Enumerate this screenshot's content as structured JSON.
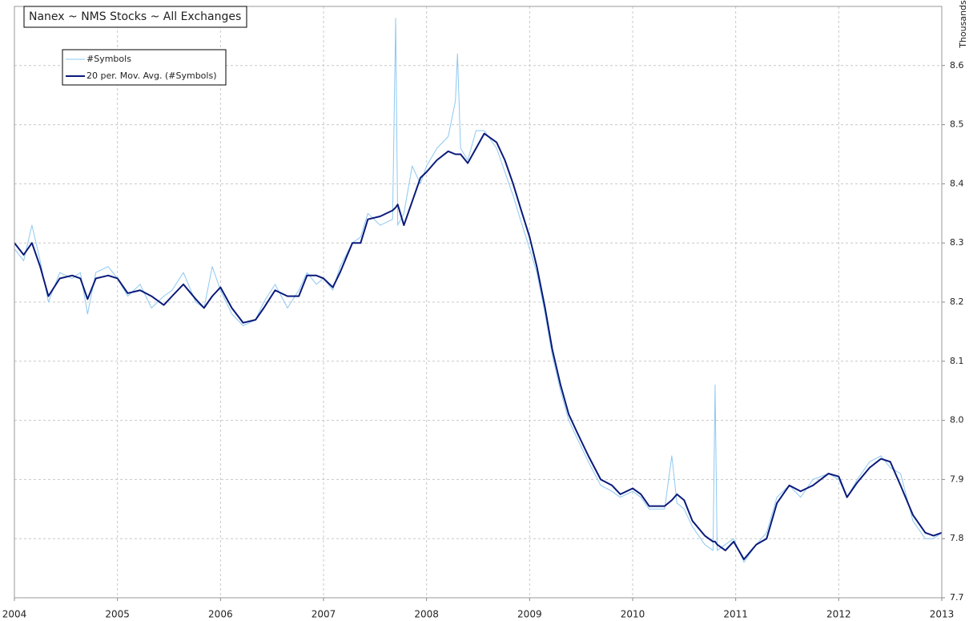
{
  "chart_data": {
    "type": "line",
    "title": "Nanex ~ NMS Stocks ~ All Exchanges",
    "y_axis_label": "Thousands",
    "x": [
      2004.0,
      2004.09,
      2004.17,
      2004.25,
      2004.33,
      2004.44,
      2004.56,
      2004.64,
      2004.71,
      2004.79,
      2004.91,
      2005.0,
      2005.1,
      2005.22,
      2005.33,
      2005.45,
      2005.53,
      2005.64,
      2005.76,
      2005.84,
      2005.92,
      2006.0,
      2006.11,
      2006.22,
      2006.34,
      2006.42,
      2006.53,
      2006.65,
      2006.76,
      2006.84,
      2006.93,
      2007.0,
      2007.09,
      2007.16,
      2007.28,
      2007.36,
      2007.43,
      2007.55,
      2007.67,
      2007.7,
      2007.72,
      2007.78,
      2007.86,
      2007.94,
      2008.0,
      2008.1,
      2008.21,
      2008.28,
      2008.3,
      2008.33,
      2008.4,
      2008.48,
      2008.56,
      2008.68,
      2008.76,
      2008.84,
      2008.91,
      2009.0,
      2009.07,
      2009.15,
      2009.22,
      2009.3,
      2009.38,
      2009.46,
      2009.57,
      2009.69,
      2009.8,
      2009.88,
      2010.0,
      2010.08,
      2010.16,
      2010.31,
      2010.38,
      2010.43,
      2010.5,
      2010.58,
      2010.7,
      2010.78,
      2010.8,
      2010.82,
      2010.9,
      2010.98,
      2011.08,
      2011.2,
      2011.3,
      2011.4,
      2011.52,
      2011.63,
      2011.75,
      2011.9,
      2012.0,
      2012.08,
      2012.18,
      2012.3,
      2012.41,
      2012.5,
      2012.6,
      2012.72,
      2012.84,
      2012.92,
      2013.0
    ],
    "series": [
      {
        "name": "#Symbols",
        "color": "#8ec8f0",
        "width": 1,
        "values": [
          8.29,
          8.27,
          8.33,
          8.27,
          8.2,
          8.25,
          8.24,
          8.25,
          8.18,
          8.25,
          8.26,
          8.24,
          8.21,
          8.23,
          8.19,
          8.21,
          8.22,
          8.25,
          8.2,
          8.19,
          8.26,
          8.22,
          8.18,
          8.16,
          8.17,
          8.2,
          8.23,
          8.19,
          8.22,
          8.25,
          8.23,
          8.24,
          8.22,
          8.26,
          8.3,
          8.31,
          8.35,
          8.33,
          8.34,
          8.68,
          8.33,
          8.35,
          8.43,
          8.4,
          8.43,
          8.46,
          8.48,
          8.54,
          8.62,
          8.46,
          8.44,
          8.49,
          8.49,
          8.46,
          8.42,
          8.38,
          8.34,
          8.29,
          8.25,
          8.18,
          8.11,
          8.05,
          8.0,
          7.97,
          7.93,
          7.89,
          7.88,
          7.87,
          7.88,
          7.87,
          7.85,
          7.85,
          7.94,
          7.86,
          7.85,
          7.82,
          7.79,
          7.78,
          8.06,
          7.78,
          7.79,
          7.8,
          7.76,
          7.79,
          7.81,
          7.87,
          7.89,
          7.87,
          7.9,
          7.91,
          7.9,
          7.87,
          7.9,
          7.93,
          7.94,
          7.92,
          7.91,
          7.83,
          7.8,
          7.8,
          7.81
        ]
      },
      {
        "name": "20 per. Mov. Avg. (#Symbols)",
        "color": "#0a1a7a",
        "width": 2,
        "values": [
          8.3,
          8.28,
          8.3,
          8.26,
          8.21,
          8.24,
          8.245,
          8.24,
          8.205,
          8.24,
          8.245,
          8.24,
          8.215,
          8.22,
          8.21,
          8.195,
          8.21,
          8.23,
          8.205,
          8.19,
          8.21,
          8.225,
          8.19,
          8.165,
          8.17,
          8.19,
          8.22,
          8.21,
          8.21,
          8.245,
          8.245,
          8.24,
          8.225,
          8.25,
          8.3,
          8.3,
          8.34,
          8.345,
          8.355,
          8.36,
          8.365,
          8.33,
          8.37,
          8.41,
          8.42,
          8.44,
          8.455,
          8.45,
          8.45,
          8.45,
          8.435,
          8.46,
          8.485,
          8.47,
          8.44,
          8.4,
          8.36,
          8.31,
          8.26,
          8.19,
          8.12,
          8.06,
          8.01,
          7.98,
          7.94,
          7.9,
          7.89,
          7.875,
          7.885,
          7.875,
          7.855,
          7.855,
          7.865,
          7.875,
          7.865,
          7.83,
          7.805,
          7.795,
          7.795,
          7.79,
          7.78,
          7.795,
          7.765,
          7.79,
          7.8,
          7.86,
          7.89,
          7.88,
          7.89,
          7.91,
          7.905,
          7.87,
          7.895,
          7.92,
          7.935,
          7.93,
          7.89,
          7.84,
          7.81,
          7.805,
          7.81
        ]
      }
    ],
    "xlim": [
      2004,
      2013
    ],
    "xticks": [
      2004,
      2005,
      2006,
      2007,
      2008,
      2009,
      2010,
      2011,
      2012,
      2013
    ],
    "ylim": [
      7.7,
      8.7
    ],
    "yticks": [
      7.7,
      7.8,
      7.9,
      {
        "value": 8,
        "label": "8.0"
      },
      8.1,
      8.2,
      8.3,
      8.4,
      8.5,
      8.6
    ],
    "grid": true,
    "legend": "upper left"
  }
}
